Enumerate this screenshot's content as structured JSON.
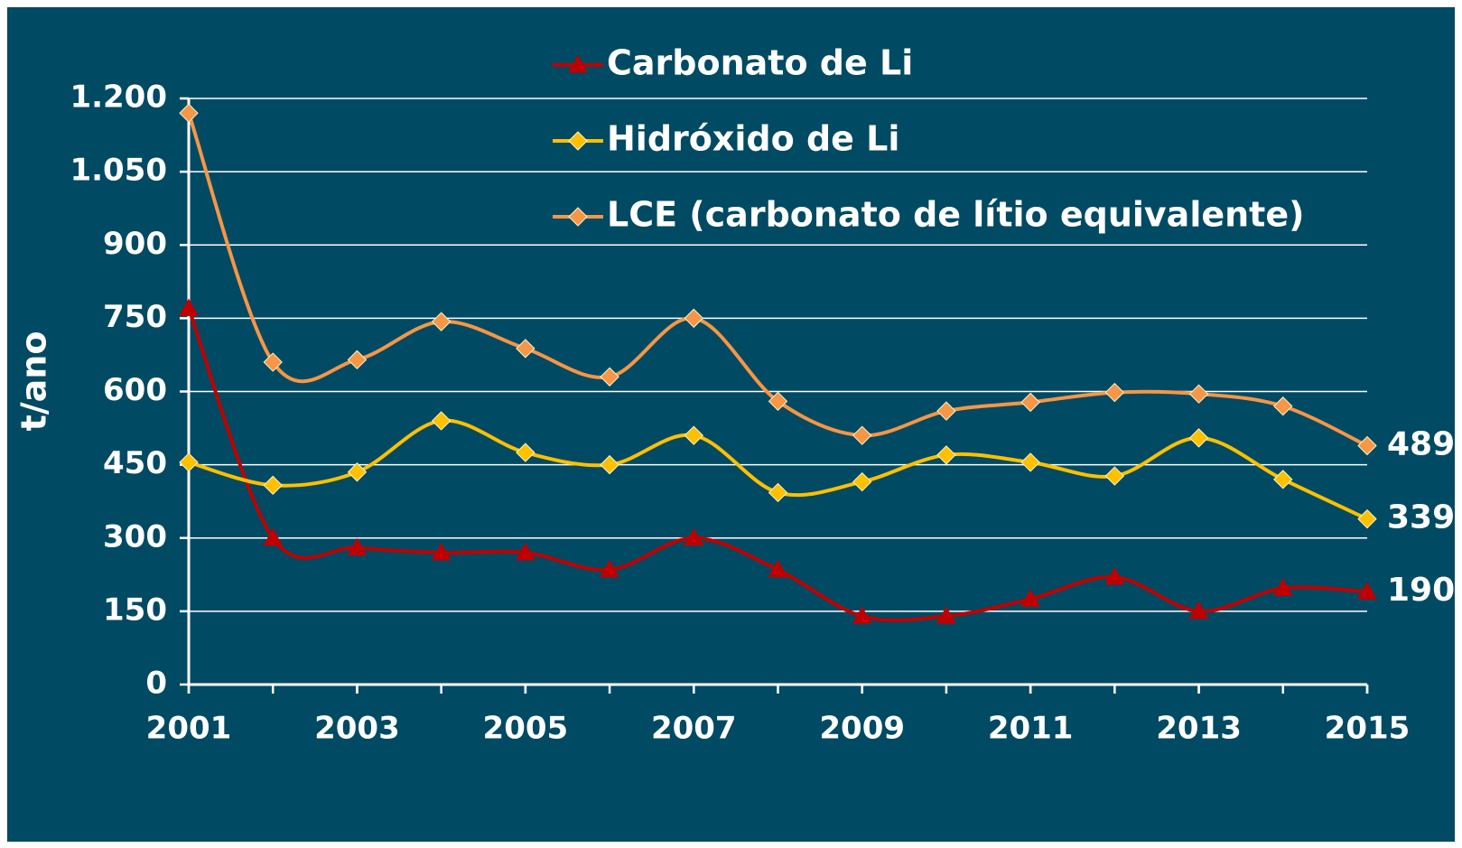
{
  "chart_data": {
    "type": "line",
    "y_label": "t/ano",
    "x": [
      2001,
      2002,
      2003,
      2004,
      2005,
      2006,
      2007,
      2008,
      2009,
      2010,
      2011,
      2012,
      2013,
      2014,
      2015
    ],
    "series": [
      {
        "name": "Carbonato de Li",
        "color": "#c00000",
        "marker": "triangle",
        "values": [
          770,
          300,
          280,
          270,
          270,
          235,
          300,
          235,
          140,
          140,
          175,
          220,
          150,
          197,
          190
        ]
      },
      {
        "name": "Hidróxido de Li",
        "color": "#ffc000",
        "marker": "diamond",
        "values": [
          455,
          408,
          435,
          540,
          475,
          450,
          510,
          393,
          415,
          470,
          455,
          427,
          505,
          420,
          339
        ]
      },
      {
        "name": "LCE (carbonato de lítio equivalente)",
        "color": "#f79646",
        "marker": "diamond",
        "values": [
          1170,
          660,
          665,
          743,
          688,
          630,
          750,
          580,
          510,
          560,
          578,
          598,
          595,
          570,
          489
        ]
      }
    ],
    "xlim": [
      2001,
      2015
    ],
    "xticks": [
      2001,
      2003,
      2005,
      2007,
      2009,
      2011,
      2013,
      2015
    ],
    "ylim": [
      0,
      1200
    ],
    "yticks": [
      0,
      150,
      300,
      450,
      600,
      750,
      900,
      {
        "value": 1050,
        "label": "1.050"
      },
      {
        "value": 1200,
        "label": "1.200"
      }
    ],
    "grid": true,
    "legend": "top",
    "smooth": true,
    "end_labels": true
  }
}
